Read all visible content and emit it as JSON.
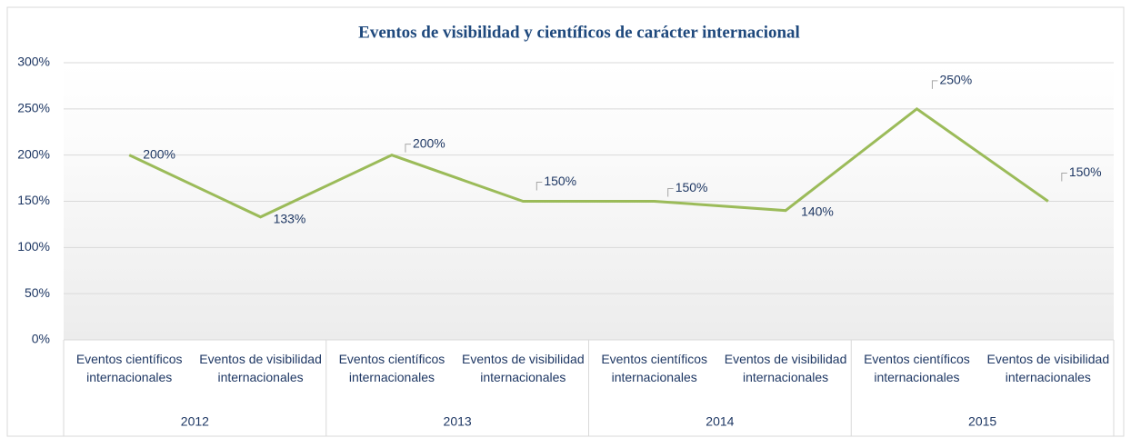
{
  "chart_data": {
    "type": "line",
    "title": "Eventos de visibilidad y científicos de carácter internacional",
    "categories": [
      "Eventos científicos internacionales",
      "Eventos de visibilidad internacionales",
      "Eventos científicos internacionales",
      "Eventos de visibilidad internacionales",
      "Eventos científicos internacionales",
      "Eventos de visibilidad internacionales",
      "Eventos científicos internacionales",
      "Eventos de visibilidad internacionales"
    ],
    "groups": [
      "2012",
      "2013",
      "2014",
      "2015"
    ],
    "values": [
      200,
      133,
      200,
      150,
      150,
      140,
      250,
      150
    ],
    "value_labels": [
      "200%",
      "133%",
      "200%",
      "150%",
      "150%",
      "140%",
      "250%",
      "150%"
    ],
    "color": "#9bbb59",
    "ylim": [
      0,
      300
    ],
    "yticks": [
      {
        "value": 0,
        "label": "0%"
      },
      {
        "value": 50,
        "label": "50%"
      },
      {
        "value": 100,
        "label": "100%"
      },
      {
        "value": 150,
        "label": "150%"
      },
      {
        "value": 200,
        "label": "200%"
      },
      {
        "value": 250,
        "label": "250%"
      },
      {
        "value": 300,
        "label": "300%"
      }
    ],
    "grid": true
  }
}
